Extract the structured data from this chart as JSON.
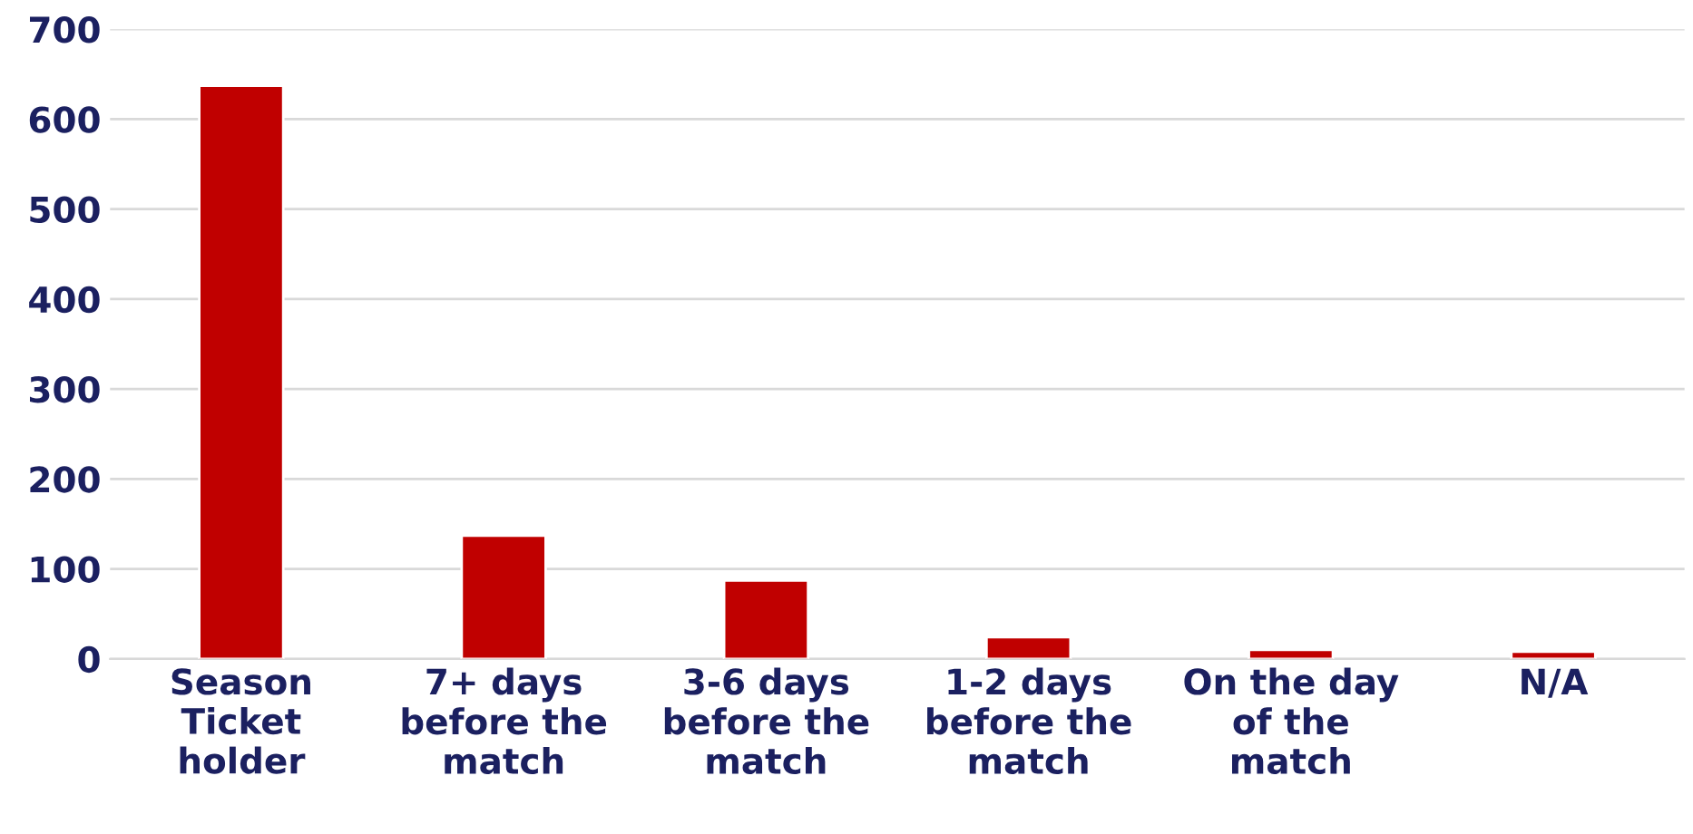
{
  "chart_data": {
    "type": "bar",
    "categories": [
      "Season\nTicket\nholder",
      "7+ days\nbefore the\nmatch",
      "3-6 days\nbefore the\nmatch",
      "1-2 days\nbefore the\nmatch",
      "On the day\nof the\nmatch",
      "N/A"
    ],
    "values": [
      637,
      137,
      87,
      24,
      10,
      8
    ],
    "color": "#c00000",
    "ylim": [
      0,
      700
    ],
    "yticks": [
      0,
      100,
      200,
      300,
      400,
      500,
      600,
      700
    ],
    "grid": "y"
  }
}
